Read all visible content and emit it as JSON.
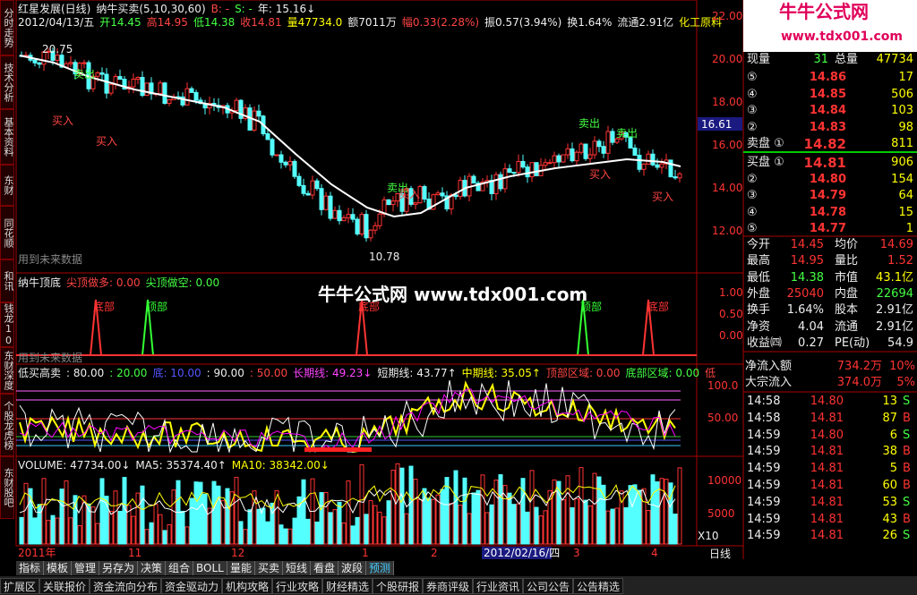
{
  "left_tabs": [
    "分时走势",
    "技术分析",
    "基本资料",
    "东财10",
    "同花顺10",
    "和讯10",
    "钱龙10",
    "东财深度",
    "个股龙虎榜",
    "东财股吧"
  ],
  "price_panel": {
    "title": "红星发展(日线)",
    "indicator": "纳牛买卖(5,10,30,60)",
    "b": "B: -",
    "s": "S: -",
    "year": "年: 15.16↓",
    "quote": [
      "2012/04/13/五",
      "开14.45",
      "高14.95",
      "低14.38",
      "收14.81",
      "量47734.0",
      "额7011万",
      "幅0.33(2.28%)",
      "振0.57(3.94%)",
      "换1.64%",
      "流通2.91亿",
      "化工原料"
    ],
    "high_mark": "20.75",
    "low_mark": "10.78",
    "note": "用到未来数据",
    "sell": "卖出",
    "buy": "买入",
    "axis": [
      "22.00",
      "20.00",
      "18.00",
      "16.00",
      "14.00",
      "12.00"
    ],
    "cursor_price": "16.61"
  },
  "top_bottom_panel": {
    "title": "纳牛顶底",
    "long": "尖顶做多: 0.00",
    "short": "尖顶做空: 0.00",
    "bottom": "底部",
    "top": "顶部",
    "note": "用到未来数据",
    "axis": [
      "1.00",
      "0.50",
      "0.00"
    ]
  },
  "watermark": "牛牛公式网 www.tdx001.com",
  "oscillator_panel": {
    "items": [
      "低买高卖",
      ": 80.00",
      ": 20.00",
      "底: 10.00",
      ": 90.00",
      ": 50.00",
      "长期线: 49.23↓",
      "短期线: 43.77↑",
      "中期线: 35.05↑",
      "顶部区域: 0.00",
      "底部区域: 0.00",
      "低"
    ],
    "axis": [
      "100.0",
      "50.00"
    ]
  },
  "volume_panel": {
    "items": [
      "VOLUME: 47734.00↓",
      "MA5: 35374.40↑",
      "MA10: 38342.00↓"
    ],
    "axis": [
      "10000",
      "5000"
    ],
    "unit": "X10"
  },
  "date_axis": [
    "2011年",
    "11",
    "12",
    "1",
    "2",
    "2012/02/16/四",
    "3",
    "4"
  ],
  "toolbar": [
    "指标",
    "模板",
    "管理",
    "另存为",
    "决策",
    "组合",
    "BOLL",
    "量能",
    "买卖",
    "短线",
    "看盘",
    "波段",
    "预测"
  ],
  "period": "日线",
  "bottom_tabs": [
    "扩展区",
    "关联报价",
    "资金流向分布",
    "资金驱动力",
    "机构攻略",
    "行业攻略",
    "财经精选",
    "个股研报",
    "券商评级",
    "行业资讯",
    "公司公告",
    "公告精选"
  ],
  "logo": {
    "name": "牛牛公式网",
    "url": "www.tdx001.com"
  },
  "quote_panel": {
    "volume_row": [
      "现量",
      "31",
      "总量",
      "47734"
    ],
    "asks": [
      [
        "⑤",
        "14.86",
        "17"
      ],
      [
        "④",
        "14.85",
        "506"
      ],
      [
        "③",
        "14.84",
        "103"
      ],
      [
        "②",
        "14.83",
        "98"
      ],
      [
        "卖盘 ①",
        "14.82",
        "811"
      ]
    ],
    "bids": [
      [
        "买盘 ①",
        "14.81",
        "906"
      ],
      [
        "②",
        "14.80",
        "154"
      ],
      [
        "③",
        "14.79",
        "64"
      ],
      [
        "④",
        "14.78",
        "15"
      ],
      [
        "⑤",
        "14.77",
        "1"
      ]
    ],
    "stats": [
      [
        "今开",
        "14.45",
        "均价",
        "14.69"
      ],
      [
        "最高",
        "14.95",
        "量比",
        "1.52"
      ],
      [
        "最低",
        "14.38",
        "市值",
        "43.1亿"
      ],
      [
        "外盘",
        "25040",
        "内盘",
        "22694"
      ],
      [
        "换手",
        "1.64%",
        "股本",
        "2.91亿"
      ],
      [
        "净资",
        "4.04",
        "流通",
        "2.91亿"
      ],
      [
        "收益㈣",
        "0.27",
        "PE(动)",
        "54.9"
      ]
    ],
    "flows": [
      [
        "净流入额",
        "734.2万",
        "10%"
      ],
      [
        "大宗流入",
        "374.0万",
        "5%"
      ]
    ],
    "ticks": [
      [
        "14:58",
        "14.80",
        "13",
        "S"
      ],
      [
        "14:58",
        "14.81",
        "87",
        "B"
      ],
      [
        "14:59",
        "14.80",
        "6",
        "S"
      ],
      [
        "14:59",
        "14.81",
        "38",
        "B"
      ],
      [
        "14:59",
        "14.81",
        "5",
        "B"
      ],
      [
        "14:59",
        "14.81",
        "60",
        "B"
      ],
      [
        "14:59",
        "14.81",
        "53",
        "S"
      ],
      [
        "14:59",
        "14.81",
        "43",
        "B"
      ],
      [
        "14:59",
        "14.81",
        "26",
        "S"
      ]
    ]
  }
}
